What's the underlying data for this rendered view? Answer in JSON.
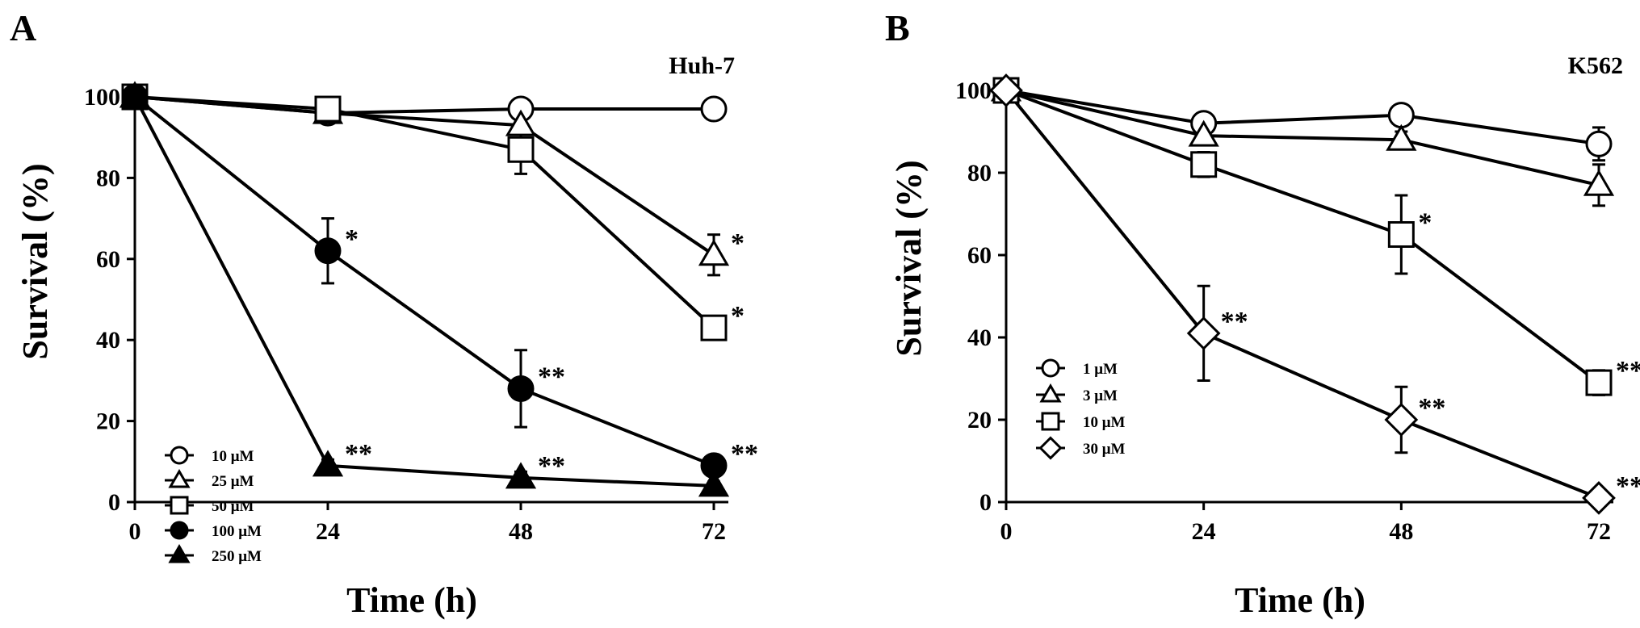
{
  "chart_data": [
    {
      "type": "line",
      "panel_label": "A",
      "title": "Huh-7",
      "xlabel": "Time (h)",
      "ylabel": "Survival (%)",
      "x": [
        0,
        24,
        48,
        72
      ],
      "xticks": [
        "0",
        "24",
        "48",
        "72"
      ],
      "yticks": [
        "0",
        "20",
        "40",
        "60",
        "80",
        "100"
      ],
      "xlim": [
        0,
        72
      ],
      "ylim": [
        0,
        100
      ],
      "legend_position": "bottom-left",
      "series": [
        {
          "name": "10 μM",
          "marker": "circle",
          "fill": "white",
          "values": [
            100,
            96,
            97,
            97
          ],
          "errors": [
            0,
            1.5,
            1.5,
            1.5
          ],
          "annotations": [
            "",
            "",
            "",
            ""
          ]
        },
        {
          "name": "25 μM",
          "marker": "triangle",
          "fill": "white",
          "values": [
            100,
            96,
            93,
            61
          ],
          "errors": [
            0,
            1.5,
            2,
            5
          ],
          "annotations": [
            "",
            "",
            "",
            "*"
          ]
        },
        {
          "name": "50 μM",
          "marker": "square",
          "fill": "white",
          "values": [
            100,
            97,
            87,
            43
          ],
          "errors": [
            0,
            1.5,
            6,
            1.5
          ],
          "annotations": [
            "",
            "",
            "",
            "*"
          ]
        },
        {
          "name": "100 μM",
          "marker": "circle",
          "fill": "black",
          "values": [
            100,
            62,
            28,
            9
          ],
          "errors": [
            0,
            8,
            9.5,
            1.5
          ],
          "annotations": [
            "",
            "*",
            "**",
            "**"
          ]
        },
        {
          "name": "250 μM",
          "marker": "triangle",
          "fill": "black",
          "values": [
            100,
            9,
            6,
            4
          ],
          "errors": [
            0,
            1.5,
            1.5,
            1
          ],
          "annotations": [
            "",
            "**",
            "**",
            ""
          ]
        }
      ]
    },
    {
      "type": "line",
      "panel_label": "B",
      "title": "K562",
      "xlabel": "Time (h)",
      "ylabel": "Survival (%)",
      "x": [
        0,
        24,
        48,
        72
      ],
      "xticks": [
        "0",
        "24",
        "48",
        "72"
      ],
      "yticks": [
        "0",
        "20",
        "40",
        "60",
        "80",
        "100"
      ],
      "xlim": [
        0,
        72
      ],
      "ylim": [
        0,
        100
      ],
      "legend_position": "bottom-left",
      "series": [
        {
          "name": "1 μM",
          "marker": "circle",
          "fill": "white",
          "values": [
            100,
            92,
            94,
            87
          ],
          "errors": [
            0,
            2,
            2,
            4
          ],
          "annotations": [
            "",
            "",
            "",
            ""
          ]
        },
        {
          "name": "3 μM",
          "marker": "triangle",
          "fill": "white",
          "values": [
            100,
            89,
            88,
            77
          ],
          "errors": [
            0,
            2,
            2,
            5
          ],
          "annotations": [
            "",
            "",
            "",
            ""
          ]
        },
        {
          "name": "10 μM",
          "marker": "square",
          "fill": "white",
          "values": [
            100,
            82,
            65,
            29
          ],
          "errors": [
            0,
            3,
            9.5,
            3
          ],
          "annotations": [
            "",
            "",
            "*",
            "**"
          ]
        },
        {
          "name": "30 μM",
          "marker": "diamond",
          "fill": "white",
          "values": [
            100,
            41,
            20,
            1
          ],
          "errors": [
            0,
            11.5,
            8,
            1
          ],
          "annotations": [
            "",
            "**",
            "**",
            "**"
          ]
        }
      ]
    }
  ]
}
